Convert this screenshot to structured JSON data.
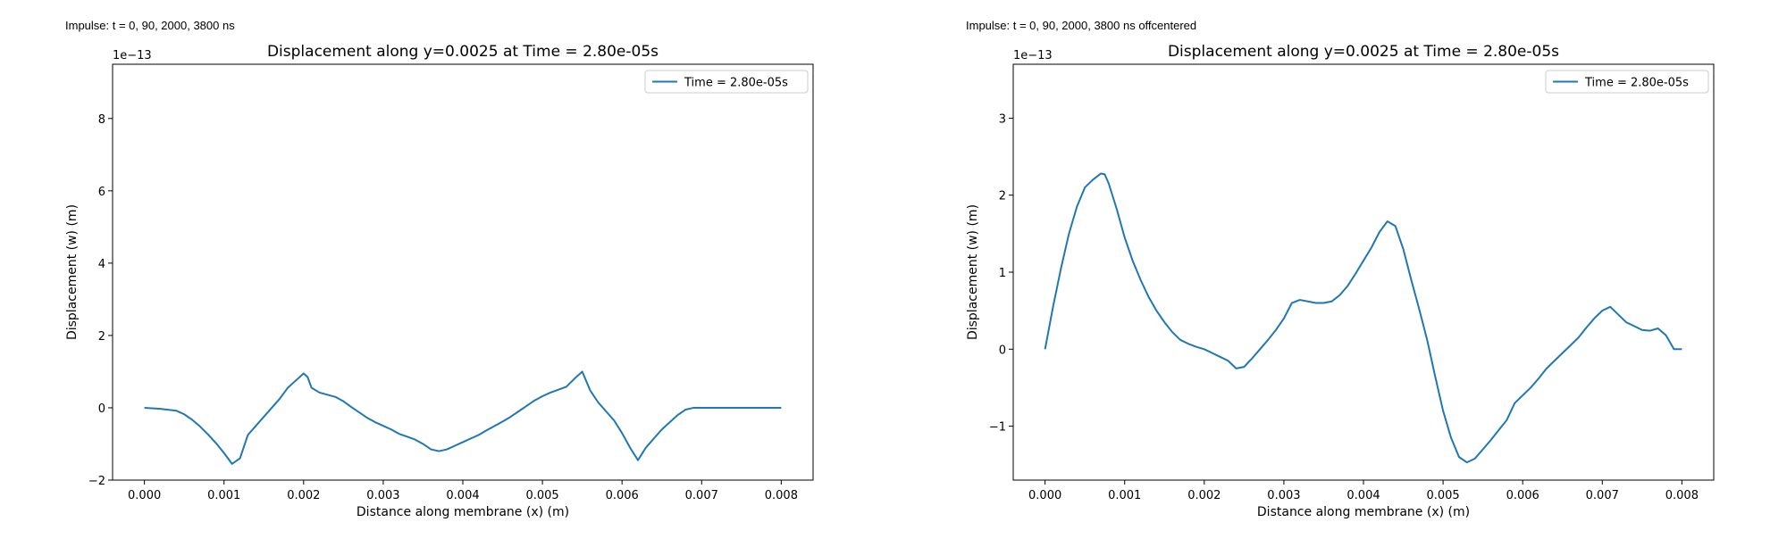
{
  "panels": [
    {
      "caption": "Impulse: t = 0, 90, 2000, 3800 ns",
      "chart_data": {
        "type": "line",
        "title": "Displacement along y=0.0025 at Time = 2.80e-05s",
        "xlabel": "Distance along membrane (x) (m)",
        "ylabel": "Displacement (w) (m)",
        "offset_label": "1e−13",
        "xlim": [
          -0.0004,
          0.0084
        ],
        "ylim": [
          -2.0,
          9.5
        ],
        "xticks": [
          0.0,
          0.001,
          0.002,
          0.003,
          0.004,
          0.005,
          0.006,
          0.007,
          0.008
        ],
        "xtick_labels": [
          "0.000",
          "0.001",
          "0.002",
          "0.003",
          "0.004",
          "0.005",
          "0.006",
          "0.007",
          "0.008"
        ],
        "yticks": [
          -2,
          0,
          2,
          4,
          6,
          8
        ],
        "ytick_labels": [
          "−2",
          "0",
          "2",
          "4",
          "6",
          "8"
        ],
        "legend_position": "top-right",
        "grid": false,
        "series": [
          {
            "name": "Time = 2.80e-05s",
            "color": "#1f77b4",
            "x": [
              0.0,
              0.0002,
              0.0004,
              0.0005,
              0.0006,
              0.0007,
              0.0008,
              0.0009,
              0.001,
              0.0011,
              0.0012,
              0.0013,
              0.0014,
              0.0015,
              0.0016,
              0.0017,
              0.0018,
              0.0019,
              0.002,
              0.00205,
              0.0021,
              0.0022,
              0.0024,
              0.0025,
              0.0026,
              0.0027,
              0.0028,
              0.0029,
              0.003,
              0.0031,
              0.0032,
              0.0033,
              0.0034,
              0.0035,
              0.0036,
              0.0037,
              0.0038,
              0.0039,
              0.004,
              0.0041,
              0.0042,
              0.0043,
              0.0044,
              0.0045,
              0.0046,
              0.0047,
              0.0048,
              0.0049,
              0.005,
              0.0051,
              0.0052,
              0.0053,
              0.0054,
              0.0055,
              0.0056,
              0.0057,
              0.0058,
              0.0059,
              0.006,
              0.0061,
              0.0062,
              0.0063,
              0.0064,
              0.0065,
              0.0066,
              0.0067,
              0.0068,
              0.0069,
              0.007,
              0.0071,
              0.0072,
              0.0073,
              0.0074,
              0.0075,
              0.0076,
              0.0077,
              0.0078,
              0.008
            ],
            "y": [
              0.0,
              -0.03,
              -0.08,
              -0.18,
              -0.33,
              -0.52,
              -0.74,
              -0.98,
              -1.25,
              -1.55,
              -1.4,
              -0.75,
              -0.5,
              -0.25,
              0.0,
              0.25,
              0.55,
              0.75,
              0.95,
              0.85,
              0.55,
              0.42,
              0.3,
              0.18,
              0.02,
              -0.13,
              -0.28,
              -0.4,
              -0.5,
              -0.6,
              -0.72,
              -0.8,
              -0.88,
              -1.0,
              -1.15,
              -1.2,
              -1.15,
              -1.05,
              -0.95,
              -0.85,
              -0.75,
              -0.62,
              -0.5,
              -0.38,
              -0.25,
              -0.1,
              0.05,
              0.2,
              0.32,
              0.42,
              0.5,
              0.58,
              0.8,
              1.0,
              0.48,
              0.15,
              -0.1,
              -0.35,
              -0.7,
              -1.1,
              -1.45,
              -1.1,
              -0.85,
              -0.6,
              -0.4,
              -0.2,
              -0.05,
              0.0,
              0.0,
              0.0,
              0.0,
              0.0,
              0.0,
              0.0,
              0.0,
              0.0,
              0.0,
              0.0
            ]
          }
        ]
      }
    },
    {
      "caption": "Impulse: t = 0, 90, 2000, 3800 ns offcentered",
      "chart_data": {
        "type": "line",
        "title": "Displacement along y=0.0025 at Time = 2.80e-05s",
        "xlabel": "Distance along membrane (x) (m)",
        "ylabel": "Displacement (w) (m)",
        "offset_label": "1e−13",
        "xlim": [
          -0.0004,
          0.0084
        ],
        "ylim": [
          -1.7,
          3.7
        ],
        "xticks": [
          0.0,
          0.001,
          0.002,
          0.003,
          0.004,
          0.005,
          0.006,
          0.007,
          0.008
        ],
        "xtick_labels": [
          "0.000",
          "0.001",
          "0.002",
          "0.003",
          "0.004",
          "0.005",
          "0.006",
          "0.007",
          "0.008"
        ],
        "yticks": [
          -1,
          0,
          1,
          2,
          3
        ],
        "ytick_labels": [
          "−1",
          "0",
          "1",
          "2",
          "3"
        ],
        "legend_position": "top-right",
        "grid": false,
        "series": [
          {
            "name": "Time = 2.80e-05s",
            "color": "#1f77b4",
            "x": [
              0.0,
              0.0001,
              0.0002,
              0.0003,
              0.0004,
              0.0005,
              0.0006,
              0.0007,
              0.00075,
              0.0008,
              0.0009,
              0.001,
              0.0011,
              0.0012,
              0.0013,
              0.0014,
              0.0015,
              0.0016,
              0.0017,
              0.0018,
              0.0019,
              0.002,
              0.0021,
              0.0022,
              0.0023,
              0.0024,
              0.0025,
              0.0026,
              0.0027,
              0.0028,
              0.0029,
              0.003,
              0.0031,
              0.0032,
              0.0033,
              0.0034,
              0.0035,
              0.0036,
              0.0037,
              0.0038,
              0.0039,
              0.004,
              0.0041,
              0.0042,
              0.0043,
              0.0044,
              0.0045,
              0.0046,
              0.0047,
              0.0048,
              0.0049,
              0.005,
              0.0051,
              0.0052,
              0.0053,
              0.0054,
              0.0055,
              0.0056,
              0.0057,
              0.0058,
              0.0059,
              0.006,
              0.0061,
              0.0062,
              0.0063,
              0.0064,
              0.0065,
              0.0066,
              0.0067,
              0.0068,
              0.0069,
              0.007,
              0.0071,
              0.0072,
              0.0073,
              0.0074,
              0.0075,
              0.0076,
              0.0077,
              0.0078,
              0.0079,
              0.008
            ],
            "y": [
              0.0,
              0.55,
              1.05,
              1.5,
              1.85,
              2.1,
              2.2,
              2.28,
              2.27,
              2.15,
              1.82,
              1.45,
              1.15,
              0.9,
              0.68,
              0.5,
              0.35,
              0.22,
              0.12,
              0.07,
              0.03,
              0.0,
              -0.05,
              -0.1,
              -0.15,
              -0.25,
              -0.23,
              -0.12,
              0.0,
              0.12,
              0.25,
              0.4,
              0.6,
              0.64,
              0.62,
              0.6,
              0.6,
              0.62,
              0.7,
              0.82,
              0.98,
              1.15,
              1.32,
              1.52,
              1.66,
              1.6,
              1.3,
              0.9,
              0.52,
              0.12,
              -0.35,
              -0.8,
              -1.15,
              -1.4,
              -1.47,
              -1.42,
              -1.3,
              -1.18,
              -1.05,
              -0.92,
              -0.7,
              -0.6,
              -0.5,
              -0.38,
              -0.25,
              -0.15,
              -0.05,
              0.05,
              0.15,
              0.28,
              0.4,
              0.5,
              0.55,
              0.45,
              0.35,
              0.3,
              0.25,
              0.24,
              0.27,
              0.18,
              0.0,
              0.0
            ]
          }
        ]
      }
    }
  ]
}
